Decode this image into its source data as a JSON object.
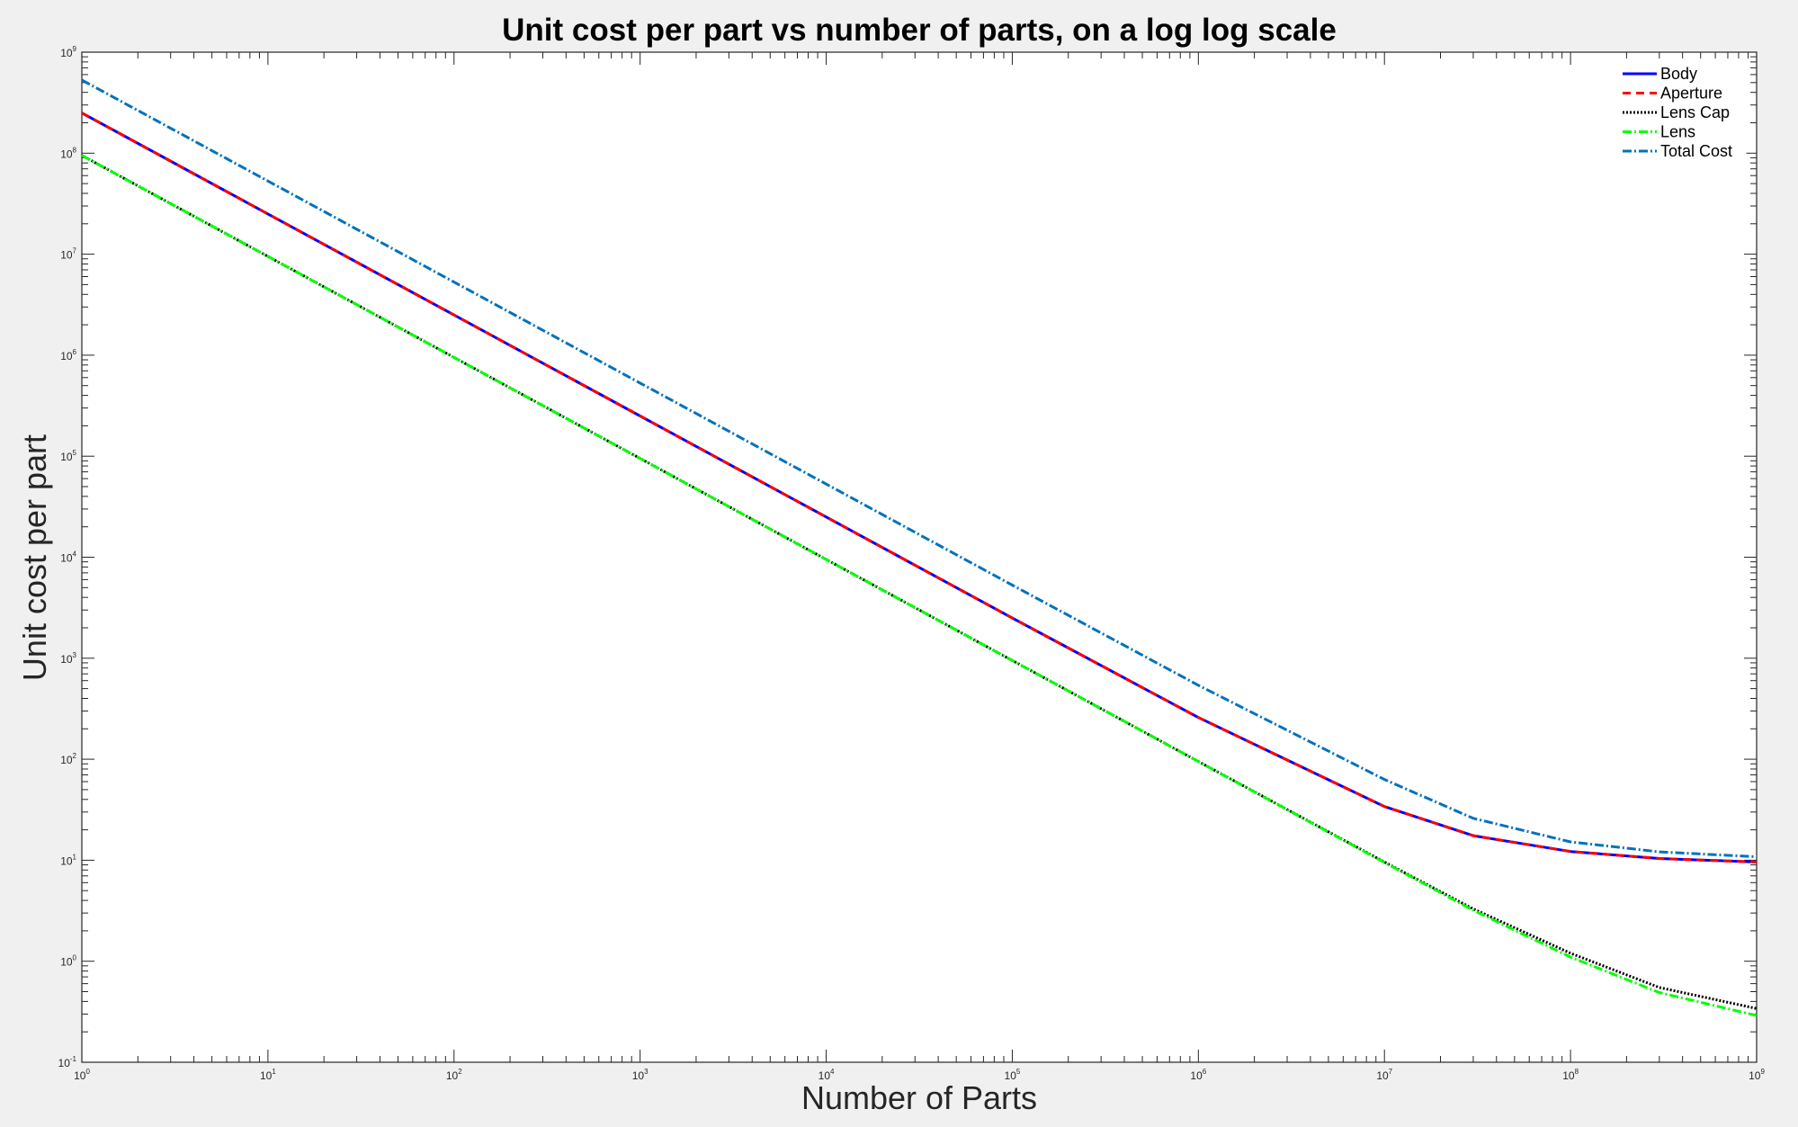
{
  "chart_data": {
    "type": "line",
    "title": "Unit cost per part vs number of parts, on a log log scale",
    "xlabel": "Number of Parts",
    "ylabel": "Unit cost per part",
    "xscale": "log",
    "yscale": "log",
    "xlim": [
      1,
      1000000000
    ],
    "ylim": [
      0.1,
      1000000000
    ],
    "grid": false,
    "legend_position": "top-right",
    "x_ticks": [
      {
        "base": "10",
        "exp": "0",
        "value": 1
      },
      {
        "base": "10",
        "exp": "1",
        "value": 10
      },
      {
        "base": "10",
        "exp": "2",
        "value": 100
      },
      {
        "base": "10",
        "exp": "3",
        "value": 1000
      },
      {
        "base": "10",
        "exp": "4",
        "value": 10000
      },
      {
        "base": "10",
        "exp": "5",
        "value": 100000
      },
      {
        "base": "10",
        "exp": "6",
        "value": 1000000
      },
      {
        "base": "10",
        "exp": "7",
        "value": 10000000
      },
      {
        "base": "10",
        "exp": "8",
        "value": 100000000
      },
      {
        "base": "10",
        "exp": "9",
        "value": 1000000000
      }
    ],
    "y_ticks": [
      {
        "base": "10",
        "exp": "-1",
        "value": 0.1
      },
      {
        "base": "10",
        "exp": "0",
        "value": 1
      },
      {
        "base": "10",
        "exp": "1",
        "value": 10
      },
      {
        "base": "10",
        "exp": "2",
        "value": 100
      },
      {
        "base": "10",
        "exp": "3",
        "value": 1000
      },
      {
        "base": "10",
        "exp": "4",
        "value": 10000
      },
      {
        "base": "10",
        "exp": "5",
        "value": 100000
      },
      {
        "base": "10",
        "exp": "6",
        "value": 1000000
      },
      {
        "base": "10",
        "exp": "7",
        "value": 10000000
      },
      {
        "base": "10",
        "exp": "8",
        "value": 100000000
      },
      {
        "base": "10",
        "exp": "9",
        "value": 1000000000
      }
    ],
    "x": [
      1,
      10,
      100,
      1000,
      10000,
      100000,
      1000000,
      10000000,
      30000000,
      100000000,
      300000000,
      1000000000
    ],
    "series": [
      {
        "name": "Body",
        "color": "#0000ff",
        "dash": "solid",
        "values": [
          250000000,
          25000000,
          2500000,
          250000,
          25000,
          2500,
          259,
          34,
          17.5,
          12.2,
          10.4,
          9.6
        ]
      },
      {
        "name": "Aperture",
        "color": "#ff0000",
        "dash": "dashed",
        "values": [
          250000000,
          25000000,
          2500000,
          250000,
          25000,
          2500,
          259,
          34,
          17.5,
          12.2,
          10.4,
          9.6
        ]
      },
      {
        "name": "Lens Cap",
        "color": "#000000",
        "dash": "dotted",
        "values": [
          95000000,
          9500000,
          950000,
          95000,
          9500,
          950,
          95,
          9.6,
          3.3,
          1.2,
          0.55,
          0.34
        ]
      },
      {
        "name": "Lens",
        "color": "#00ff00",
        "dash": "dashdot",
        "values": [
          95000000,
          9500000,
          950000,
          95000,
          9500,
          950,
          95,
          9.5,
          3.2,
          1.1,
          0.49,
          0.29
        ]
      },
      {
        "name": "Total Cost",
        "color": "#0072bd",
        "dash": "dashdot",
        "values": [
          530000000,
          53000000,
          5300000,
          530000,
          53000,
          5300,
          540,
          63,
          26,
          15.2,
          12.1,
          10.8
        ]
      }
    ]
  }
}
